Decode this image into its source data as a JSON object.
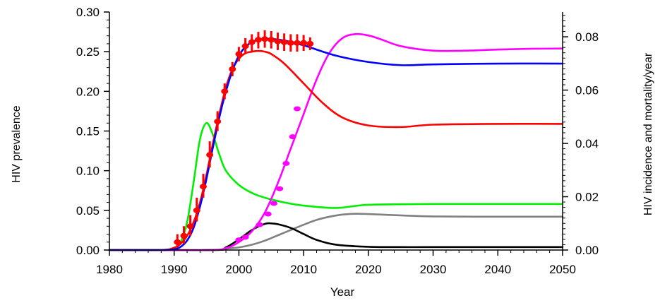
{
  "chart_data": {
    "type": "line",
    "title": "",
    "xlabel": "Year",
    "ylabel_left": "HIV prevalence",
    "ylabel_right": "HIV incidence and mortality/year",
    "xlim": [
      1980,
      2050
    ],
    "ylim_left": [
      0,
      0.3
    ],
    "ylim_right": [
      0,
      0.0893
    ],
    "x_ticks": [
      1980,
      1990,
      2000,
      2010,
      2020,
      2030,
      2040,
      2050
    ],
    "x_tick_labels": [
      "1980",
      "1990",
      "2000",
      "2010",
      "2020",
      "2030",
      "2040",
      "2050"
    ],
    "y_left_ticks": [
      0,
      0.05,
      0.1,
      0.15,
      0.2,
      0.25,
      0.3
    ],
    "y_left_tick_labels": [
      "0.00",
      "0.05",
      "0.10",
      "0.15",
      "0.20",
      "0.25",
      "0.30"
    ],
    "y_right_ticks": [
      0,
      0.02,
      0.04,
      0.06,
      0.08
    ],
    "y_right_tick_labels": [
      "0.00",
      "0.02",
      "0.04",
      "0.06",
      "0.08"
    ],
    "grid": false,
    "legend": "none",
    "series": [
      {
        "color": "#ff0000",
        "axis": "left",
        "x": [
          1980,
          1988,
          1990,
          1991,
          1992,
          1993,
          1994,
          1995,
          1996,
          1997,
          1998,
          1999,
          2000,
          2001,
          2002,
          2003,
          2004,
          2005,
          2007,
          2010,
          2013,
          2016,
          2020,
          2025,
          2030,
          2040,
          2050
        ],
        "y": [
          0,
          0,
          0.003,
          0.008,
          0.018,
          0.035,
          0.06,
          0.095,
          0.135,
          0.172,
          0.205,
          0.228,
          0.241,
          0.248,
          0.25,
          0.251,
          0.25,
          0.247,
          0.235,
          0.21,
          0.185,
          0.167,
          0.157,
          0.155,
          0.158,
          0.159,
          0.159
        ]
      },
      {
        "color": "#0000ff",
        "axis": "left",
        "x": [
          1980,
          1988,
          1990,
          1991,
          1992,
          1993,
          1994,
          1995,
          1996,
          1997,
          1998,
          1999,
          2000,
          2001,
          2002,
          2003,
          2004,
          2005,
          2007,
          2010,
          2015,
          2020,
          2025,
          2030,
          2040,
          2050
        ],
        "y": [
          0,
          0,
          0.001,
          0.004,
          0.012,
          0.028,
          0.055,
          0.09,
          0.13,
          0.168,
          0.2,
          0.226,
          0.245,
          0.256,
          0.262,
          0.265,
          0.266,
          0.266,
          0.264,
          0.258,
          0.245,
          0.237,
          0.233,
          0.234,
          0.235,
          0.235
        ]
      },
      {
        "color": "#00ee00",
        "axis": "left",
        "x": [
          1980,
          1988,
          1990,
          1991,
          1992,
          1993,
          1994,
          1995,
          1996,
          1997,
          1998,
          2000,
          2002,
          2004,
          2007,
          2010,
          2015,
          2020,
          2030,
          2040,
          2050
        ],
        "y": [
          0,
          0,
          0.002,
          0.01,
          0.035,
          0.085,
          0.14,
          0.16,
          0.145,
          0.12,
          0.1,
          0.082,
          0.072,
          0.066,
          0.06,
          0.056,
          0.053,
          0.057,
          0.058,
          0.058,
          0.058
        ]
      },
      {
        "color": "#ff00ff",
        "axis": "right",
        "x": [
          1980,
          1995,
          1998,
          2000,
          2002,
          2004,
          2006,
          2008,
          2010,
          2012,
          2014,
          2016,
          2018,
          2020,
          2022,
          2025,
          2030,
          2035,
          2040,
          2045,
          2050
        ],
        "y": [
          0,
          0,
          0.0007,
          0.003,
          0.007,
          0.014,
          0.025,
          0.038,
          0.051,
          0.064,
          0.074,
          0.0795,
          0.081,
          0.0805,
          0.079,
          0.0765,
          0.0748,
          0.0748,
          0.0752,
          0.0755,
          0.0756
        ]
      },
      {
        "color": "#808080",
        "axis": "right",
        "x": [
          1980,
          1996,
          1998,
          2000,
          2002,
          2004,
          2006,
          2008,
          2010,
          2012,
          2014,
          2016,
          2018,
          2020,
          2025,
          2030,
          2040,
          2050
        ],
        "y": [
          0,
          0,
          0.0005,
          0.001,
          0.002,
          0.0035,
          0.0055,
          0.0075,
          0.0095,
          0.0113,
          0.0125,
          0.0133,
          0.0136,
          0.0135,
          0.013,
          0.0126,
          0.0125,
          0.0125
        ]
      },
      {
        "color": "#000000",
        "axis": "right",
        "x": [
          1980,
          1996,
          1998,
          2000,
          2002,
          2004,
          2005,
          2006,
          2008,
          2010,
          2012,
          2015,
          2020,
          2025,
          2030,
          2040,
          2050
        ],
        "y": [
          0,
          0,
          0.001,
          0.004,
          0.0075,
          0.0098,
          0.01,
          0.0097,
          0.0083,
          0.006,
          0.0038,
          0.002,
          0.0012,
          0.0011,
          0.0011,
          0.0011,
          0.0011
        ]
      }
    ],
    "observed_prevalence": {
      "color": "#ff0000",
      "axis": "left",
      "points": [
        {
          "x": 1990.5,
          "y": 0.01,
          "lo": 0.003,
          "hi": 0.02
        },
        {
          "x": 1991.5,
          "y": 0.018,
          "lo": 0.008,
          "hi": 0.03
        },
        {
          "x": 1992.5,
          "y": 0.03,
          "lo": 0.018,
          "hi": 0.044
        },
        {
          "x": 1993.5,
          "y": 0.05,
          "lo": 0.036,
          "hi": 0.066
        },
        {
          "x": 1994.5,
          "y": 0.08,
          "lo": 0.066,
          "hi": 0.096
        },
        {
          "x": 1995.5,
          "y": 0.12,
          "lo": 0.104,
          "hi": 0.137
        },
        {
          "x": 1996.7,
          "y": 0.162,
          "lo": 0.15,
          "hi": 0.175
        },
        {
          "x": 1997.8,
          "y": 0.2,
          "lo": 0.19,
          "hi": 0.21
        },
        {
          "x": 1999.0,
          "y": 0.228,
          "lo": 0.219,
          "hi": 0.237
        },
        {
          "x": 2000.0,
          "y": 0.247,
          "lo": 0.238,
          "hi": 0.256
        },
        {
          "x": 2001.0,
          "y": 0.257,
          "lo": 0.247,
          "hi": 0.267
        },
        {
          "x": 2002.0,
          "y": 0.262,
          "lo": 0.251,
          "hi": 0.272
        },
        {
          "x": 2003.0,
          "y": 0.265,
          "lo": 0.254,
          "hi": 0.275
        },
        {
          "x": 2004.0,
          "y": 0.266,
          "lo": 0.255,
          "hi": 0.277
        },
        {
          "x": 2005.0,
          "y": 0.265,
          "lo": 0.254,
          "hi": 0.276
        },
        {
          "x": 2006.0,
          "y": 0.263,
          "lo": 0.252,
          "hi": 0.274
        },
        {
          "x": 2007.0,
          "y": 0.262,
          "lo": 0.251,
          "hi": 0.273
        },
        {
          "x": 2008.0,
          "y": 0.261,
          "lo": 0.25,
          "hi": 0.272
        },
        {
          "x": 2009.0,
          "y": 0.261,
          "lo": 0.25,
          "hi": 0.272
        },
        {
          "x": 2010.0,
          "y": 0.261,
          "lo": 0.251,
          "hi": 0.271
        },
        {
          "x": 2011.0,
          "y": 0.26,
          "lo": 0.252,
          "hi": 0.268
        }
      ]
    },
    "observed_mortality": {
      "color": "#ff00ff",
      "axis": "right",
      "points": [
        {
          "x": 2000.0,
          "y": 0.0038
        },
        {
          "x": 2001.0,
          "y": 0.0048
        },
        {
          "x": 2003.2,
          "y": 0.0095
        },
        {
          "x": 2004.5,
          "y": 0.0135
        },
        {
          "x": 2005.4,
          "y": 0.0175
        },
        {
          "x": 2006.3,
          "y": 0.023
        },
        {
          "x": 2007.3,
          "y": 0.0325
        },
        {
          "x": 2008.3,
          "y": 0.0425
        },
        {
          "x": 2009.0,
          "y": 0.053
        }
      ]
    }
  }
}
